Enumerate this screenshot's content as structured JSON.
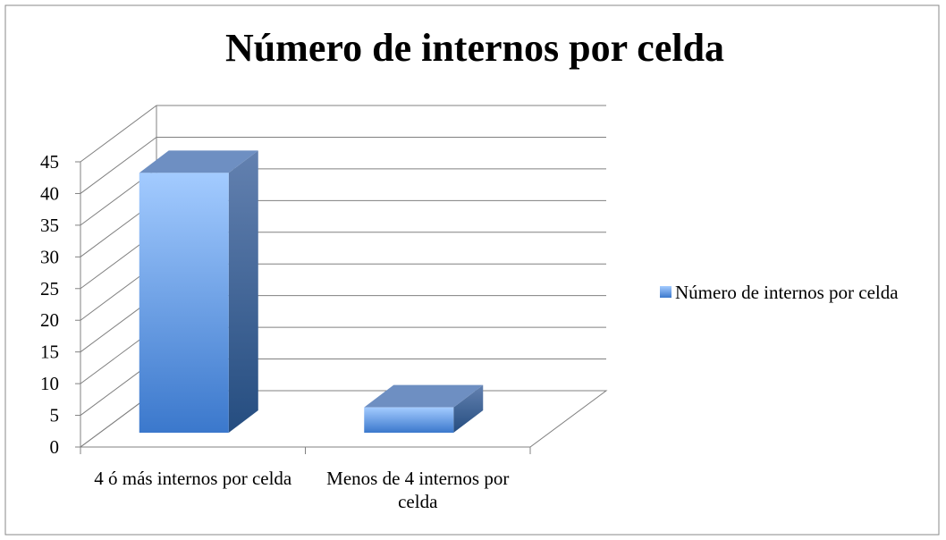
{
  "chart_data": {
    "type": "bar",
    "title": "Número de internos por celda",
    "categories": [
      "4 ó más internos por celda",
      "Menos de 4 internos por celda"
    ],
    "series": [
      {
        "name": "Número de internos por celda",
        "color": "#4f81bd",
        "values": [
          41,
          4
        ]
      }
    ],
    "ylim": [
      0,
      45
    ],
    "yticks": [
      0,
      5,
      10,
      15,
      20,
      25,
      30,
      35,
      40,
      45
    ],
    "grid": true,
    "legend": "right"
  }
}
